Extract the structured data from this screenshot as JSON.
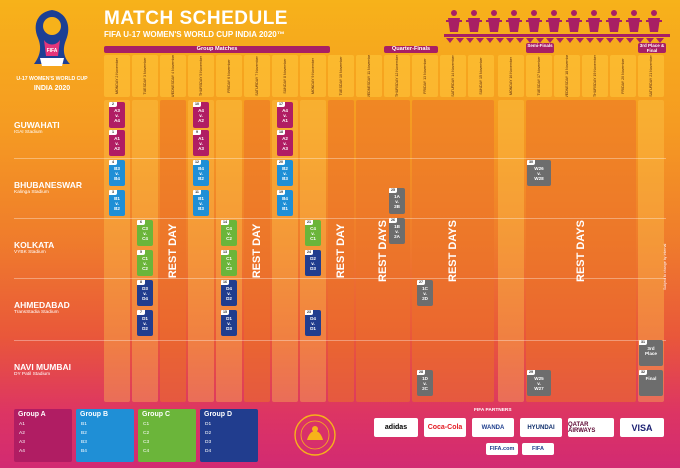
{
  "title": "MATCH SCHEDULE",
  "subtitle": "FIFA U-17 WOMEN'S WORLD CUP INDIA 2020™",
  "logo": {
    "top_text": "FIFA",
    "caption": "U-17 WOMEN'S WORLD CUP",
    "caption2": "INDIA 2020"
  },
  "stage_headers": {
    "group": "Group Matches",
    "qf": "Quarter-Finals",
    "semi": "Semi-Finals",
    "final": "3rd Place & Final"
  },
  "days": [
    {
      "d": "MONDAY",
      "m": "2 November"
    },
    {
      "d": "TUESDAY",
      "m": "3 November"
    },
    {
      "d": "WEDNESDAY",
      "m": "4 November"
    },
    {
      "d": "THURSDAY",
      "m": "5 November"
    },
    {
      "d": "FRIDAY",
      "m": "6 November"
    },
    {
      "d": "SATURDAY",
      "m": "7 November"
    },
    {
      "d": "SUNDAY",
      "m": "8 November"
    },
    {
      "d": "MONDAY",
      "m": "9 November"
    },
    {
      "d": "TUESDAY",
      "m": "10 November"
    },
    {
      "d": "WEDNESDAY",
      "m": "11 November"
    },
    {
      "d": "THURSDAY",
      "m": "12 November"
    },
    {
      "d": "FRIDAY",
      "m": "13 November"
    },
    {
      "d": "SATURDAY",
      "m": "14 November"
    },
    {
      "d": "SUNDAY",
      "m": "15 November"
    },
    {
      "d": "MONDAY",
      "m": "16 November"
    },
    {
      "d": "TUESDAY",
      "m": "17 November"
    },
    {
      "d": "WEDNESDAY",
      "m": "18 November"
    },
    {
      "d": "THURSDAY",
      "m": "19 November"
    },
    {
      "d": "FRIDAY",
      "m": "20 November"
    },
    {
      "d": "SATURDAY",
      "m": "21 November"
    }
  ],
  "sites": [
    {
      "name": "GUWAHATI",
      "stadium": "IGAI Stadium"
    },
    {
      "name": "BHUBANESWAR",
      "stadium": "Kalinga Stadium"
    },
    {
      "name": "KOLKATA",
      "stadium": "VYBK Stadium"
    },
    {
      "name": "AHMEDABAD",
      "stadium": "TransStadia Stadium"
    },
    {
      "name": "NAVI MUMBAI",
      "stadium": "DY Patil Stadium"
    }
  ],
  "rest_label": "REST DAY",
  "rest_days_label": "REST DAYS",
  "matches": [
    {
      "n": "2",
      "t": "A3 v. A4",
      "g": "A"
    },
    {
      "n": "1",
      "t": "A1 v. A2",
      "g": "A"
    },
    {
      "n": "10",
      "t": "A4 v. A2",
      "g": "A"
    },
    {
      "n": "9",
      "t": "A1 v. A3",
      "g": "A"
    },
    {
      "n": "17",
      "t": "A4 v. A1",
      "g": "A"
    },
    {
      "n": "18",
      "t": "A2 v. A3",
      "g": "A"
    },
    {
      "n": "4",
      "t": "B3 v. B4",
      "g": "B"
    },
    {
      "n": "3",
      "t": "B1 v. B2",
      "g": "B"
    },
    {
      "n": "12",
      "t": "B4 v. B2",
      "g": "B"
    },
    {
      "n": "11",
      "t": "B1 v. B3",
      "g": "B"
    },
    {
      "n": "20",
      "t": "B2 v. B3",
      "g": "B"
    },
    {
      "n": "19",
      "t": "B4 v. B1",
      "g": "B"
    },
    {
      "n": "6",
      "t": "C3 v. C4",
      "g": "C"
    },
    {
      "n": "5",
      "t": "C1 v. C2",
      "g": "C"
    },
    {
      "n": "14",
      "t": "C4 v. C2",
      "g": "C"
    },
    {
      "n": "13",
      "t": "C1 v. C3",
      "g": "C"
    },
    {
      "n": "21",
      "t": "C4 v. C1",
      "g": "C"
    },
    {
      "n": "22",
      "t": "C2 v. C3",
      "g": "C"
    },
    {
      "n": "8",
      "t": "D3 v. D4",
      "g": "D"
    },
    {
      "n": "7",
      "t": "D1 v. D2",
      "g": "D"
    },
    {
      "n": "16",
      "t": "D4 v. D2",
      "g": "D"
    },
    {
      "n": "15",
      "t": "D1 v. D3",
      "g": "D"
    },
    {
      "n": "24",
      "t": "D2 v. D3",
      "g": "D"
    },
    {
      "n": "23",
      "t": "D4 v. D1",
      "g": "D"
    },
    {
      "n": "25",
      "t": "1A v. 2B",
      "g": "K"
    },
    {
      "n": "26",
      "t": "1B v. 2A",
      "g": "K"
    },
    {
      "n": "27",
      "t": "1C v. 2D",
      "g": "K"
    },
    {
      "n": "28",
      "t": "1D v. 2C",
      "g": "K"
    },
    {
      "n": "30",
      "t": "W26 v. W28",
      "g": "K"
    },
    {
      "n": "29",
      "t": "W25 v. W27",
      "g": "K"
    },
    {
      "n": "31",
      "t": "3rd Place",
      "g": "K"
    },
    {
      "n": "32",
      "t": "Final",
      "g": "K"
    }
  ],
  "groups": [
    {
      "name": "Group A",
      "teams": [
        "A1",
        "A2",
        "A3",
        "A4"
      ],
      "color": "#b01d63"
    },
    {
      "name": "Group B",
      "teams": [
        "B1",
        "B2",
        "B3",
        "B4"
      ],
      "color": "#1f8fd6"
    },
    {
      "name": "Group C",
      "teams": [
        "C1",
        "C2",
        "C3",
        "C4"
      ],
      "color": "#6bb53a"
    },
    {
      "name": "Group D",
      "teams": [
        "D1",
        "D2",
        "D3",
        "D4"
      ],
      "color": "#213d8e"
    }
  ],
  "partners_label": "FIFA PARTNERS",
  "partners": [
    "adidas",
    "Coca-Cola",
    "WANDA",
    "HYUNDAI",
    "QATAR AIRWAYS",
    "VISA"
  ],
  "partners2": [
    "FIFA.com",
    "FIFA"
  ],
  "side_note": "Subject to change by internal"
}
